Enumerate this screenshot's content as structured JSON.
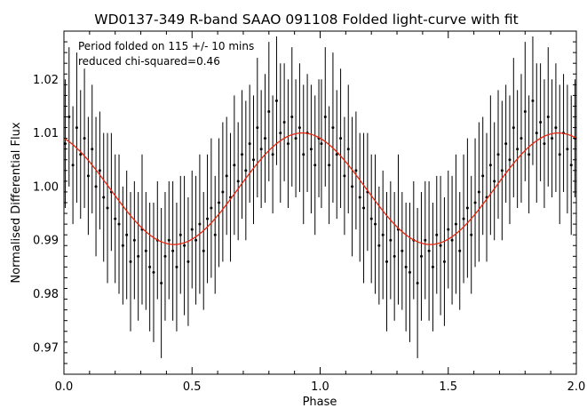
{
  "chart_data": {
    "type": "scatter",
    "title": "WD0137-349 R-band SAAO 091108 Folded light-curve with fit",
    "xlabel": "Phase",
    "ylabel": "Normalised Differential Flux",
    "xlim": [
      0.0,
      2.0
    ],
    "ylim": [
      0.965,
      1.029
    ],
    "xticks": [
      "0.0",
      "0.5",
      "1.0",
      "1.5",
      "2.0"
    ],
    "yticks": [
      "0.97",
      "0.98",
      "0.99",
      "1.00",
      "1.01",
      "1.02"
    ],
    "annotations": [
      "Period folded on 115 +/- 10 mins",
      "reduced chi-squared=0.46"
    ],
    "grid": false,
    "colors": {
      "data": "#000000",
      "fit": "#e8260e"
    },
    "fit": {
      "name": "",
      "model": "sinusoid",
      "mean": 0.9996,
      "amplitude": 0.0104,
      "phase_of_minimum": 0.43,
      "period_in_phase": 1.0
    },
    "series": [
      {
        "name": "",
        "x": [
          0.005,
          0.02,
          0.035,
          0.05,
          0.065,
          0.08,
          0.095,
          0.11,
          0.125,
          0.14,
          0.155,
          0.17,
          0.185,
          0.2,
          0.215,
          0.23,
          0.245,
          0.26,
          0.275,
          0.29,
          0.305,
          0.32,
          0.335,
          0.35,
          0.365,
          0.38,
          0.395,
          0.41,
          0.425,
          0.44,
          0.455,
          0.47,
          0.485,
          0.5,
          0.515,
          0.53,
          0.545,
          0.56,
          0.575,
          0.59,
          0.605,
          0.62,
          0.635,
          0.65,
          0.665,
          0.68,
          0.695,
          0.71,
          0.725,
          0.74,
          0.755,
          0.77,
          0.785,
          0.8,
          0.815,
          0.83,
          0.845,
          0.86,
          0.875,
          0.89,
          0.905,
          0.92,
          0.935,
          0.95,
          0.965,
          0.98,
          0.995
        ],
        "y": [
          1.008,
          1.013,
          1.004,
          1.011,
          1.006,
          1.009,
          1.002,
          1.007,
          1.0,
          1.003,
          0.998,
          0.996,
          0.999,
          0.994,
          0.993,
          0.989,
          0.991,
          0.986,
          0.99,
          0.987,
          0.992,
          0.988,
          0.985,
          0.984,
          0.99,
          0.982,
          0.987,
          0.99,
          0.988,
          0.985,
          0.991,
          0.989,
          0.986,
          0.992,
          0.99,
          0.993,
          0.988,
          0.994,
          0.996,
          0.991,
          0.997,
          0.999,
          1.002,
          0.998,
          1.004,
          1.001,
          1.006,
          1.003,
          1.008,
          1.005,
          1.011,
          1.007,
          1.009,
          1.014,
          1.006,
          1.016,
          1.01,
          1.012,
          1.008,
          1.013,
          1.009,
          1.011,
          1.006,
          1.01,
          1.007,
          1.004,
          1.009
        ],
        "yerr": [
          0.012,
          0.013,
          0.011,
          0.014,
          0.012,
          0.013,
          0.011,
          0.012,
          0.013,
          0.011,
          0.012,
          0.014,
          0.011,
          0.012,
          0.013,
          0.011,
          0.012,
          0.013,
          0.011,
          0.012,
          0.014,
          0.011,
          0.012,
          0.013,
          0.011,
          0.014,
          0.012,
          0.011,
          0.013,
          0.012,
          0.011,
          0.013,
          0.012,
          0.011,
          0.012,
          0.013,
          0.011,
          0.012,
          0.013,
          0.011,
          0.012,
          0.013,
          0.011,
          0.012,
          0.013,
          0.011,
          0.012,
          0.013,
          0.011,
          0.012,
          0.013,
          0.011,
          0.012,
          0.013,
          0.011,
          0.012,
          0.013,
          0.011,
          0.012,
          0.013,
          0.011,
          0.012,
          0.013,
          0.011,
          0.012,
          0.013,
          0.011
        ]
      }
    ]
  }
}
